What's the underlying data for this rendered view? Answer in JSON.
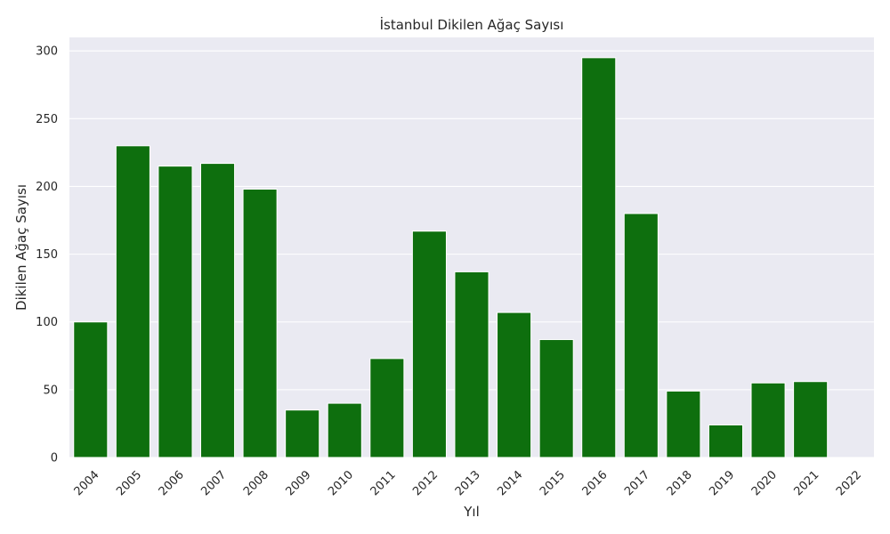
{
  "chart_data": {
    "type": "bar",
    "title": "İstanbul Dikilen Ağaç Sayısı",
    "xlabel": "Yıl",
    "ylabel": "Dikilen Ağaç Sayısı",
    "categories": [
      "2004",
      "2005",
      "2006",
      "2007",
      "2008",
      "2009",
      "2010",
      "2011",
      "2012",
      "2013",
      "2014",
      "2015",
      "2016",
      "2017",
      "2018",
      "2019",
      "2020",
      "2021",
      "2022"
    ],
    "values": [
      100,
      230,
      215,
      217,
      198,
      35,
      40,
      73,
      167,
      137,
      107,
      87,
      295,
      180,
      49,
      24,
      55,
      56,
      0
    ],
    "ylim": [
      0,
      310
    ],
    "yticks": [
      0,
      50,
      100,
      150,
      200,
      250,
      300
    ],
    "grid": true,
    "bar_color": "#0e6f0e",
    "background_color": "#eaeaf2",
    "grid_color": "#ffffff"
  }
}
